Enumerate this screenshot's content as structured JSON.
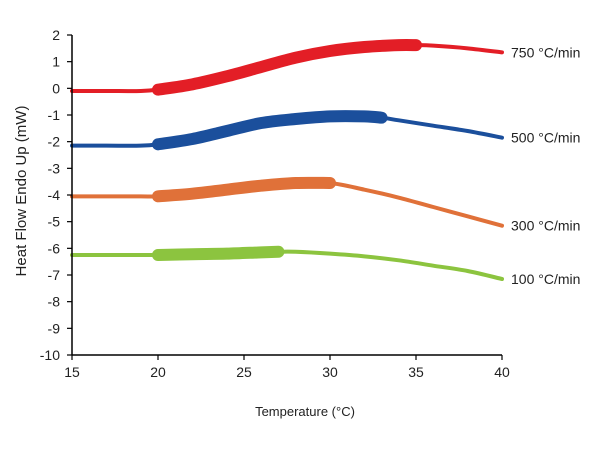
{
  "chart_data": {
    "type": "line",
    "xlabel": "Temperature (°C)",
    "ylabel": "Heat Flow Endo Up (mW)",
    "xlim": [
      15,
      40
    ],
    "ylim": [
      -10,
      2
    ],
    "x_ticks": [
      "15",
      "20",
      "25",
      "30",
      "35",
      "40"
    ],
    "y_ticks": [
      "2",
      "1",
      "0",
      "-1",
      "-2",
      "-3",
      "-4",
      "-5",
      "-6",
      "-7",
      "-8",
      "-9",
      "-10"
    ],
    "grid": false,
    "series": [
      {
        "name": "750 °C/min",
        "color": "#e31e26",
        "x": [
          15,
          17,
          19,
          20,
          22,
          24,
          26,
          28,
          30,
          32,
          34,
          35,
          36,
          38,
          40
        ],
        "y": [
          -0.1,
          -0.1,
          -0.1,
          -0.05,
          0.15,
          0.45,
          0.8,
          1.15,
          1.4,
          1.55,
          1.62,
          1.62,
          1.6,
          1.5,
          1.35
        ],
        "highlight_x": [
          20,
          35
        ]
      },
      {
        "name": "500 °C/min",
        "color": "#1b4f9c",
        "x": [
          15,
          17,
          19,
          20,
          22,
          24,
          26,
          28,
          30,
          32,
          33,
          34,
          36,
          38,
          40
        ],
        "y": [
          -2.15,
          -2.15,
          -2.15,
          -2.1,
          -1.9,
          -1.6,
          -1.3,
          -1.15,
          -1.05,
          -1.05,
          -1.1,
          -1.2,
          -1.4,
          -1.6,
          -1.85
        ],
        "highlight_x": [
          20,
          33
        ]
      },
      {
        "name": "300 °C/min",
        "color": "#e07139",
        "x": [
          15,
          17,
          19,
          20,
          22,
          24,
          26,
          28,
          30,
          32,
          34,
          36,
          38,
          40
        ],
        "y": [
          -4.05,
          -4.05,
          -4.05,
          -4.05,
          -3.95,
          -3.8,
          -3.65,
          -3.55,
          -3.55,
          -3.8,
          -4.1,
          -4.45,
          -4.8,
          -5.15
        ],
        "highlight_x": [
          20,
          30
        ]
      },
      {
        "name": "100 °C/min",
        "color": "#8cc43f",
        "x": [
          15,
          17,
          19,
          20,
          22,
          24,
          26,
          27,
          28,
          30,
          32,
          34,
          36,
          38,
          40
        ],
        "y": [
          -6.25,
          -6.25,
          -6.25,
          -6.25,
          -6.22,
          -6.2,
          -6.15,
          -6.13,
          -6.13,
          -6.2,
          -6.3,
          -6.45,
          -6.65,
          -6.85,
          -7.15
        ],
        "highlight_x": [
          20,
          27
        ]
      }
    ]
  }
}
